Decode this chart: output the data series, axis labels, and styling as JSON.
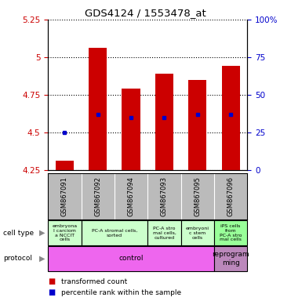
{
  "title": "GDS4124 / 1553478_at",
  "samples": [
    "GSM867091",
    "GSM867092",
    "GSM867094",
    "GSM867093",
    "GSM867095",
    "GSM867096"
  ],
  "transformed_counts": [
    4.31,
    5.06,
    4.79,
    4.89,
    4.85,
    4.94
  ],
  "percentile_ranks": [
    25,
    37,
    35,
    35,
    37,
    37
  ],
  "ylim_left": [
    4.25,
    5.25
  ],
  "ylim_right": [
    0,
    100
  ],
  "yticks_left": [
    4.25,
    4.5,
    4.75,
    5.0,
    5.25
  ],
  "yticks_right": [
    0,
    25,
    50,
    75,
    100
  ],
  "ytick_labels_left": [
    "4.25",
    "4.5",
    "4.75",
    "5",
    "5.25"
  ],
  "ytick_labels_right": [
    "0",
    "25",
    "50",
    "75",
    "100%"
  ],
  "bar_color": "#cc0000",
  "dot_color": "#0000cc",
  "bar_bottom": 4.25,
  "bar_width": 0.55,
  "cell_types": [
    {
      "label": "embryona\nl carciom\na NCCIT\ncells",
      "span": [
        0,
        1
      ],
      "color": "#ccffcc"
    },
    {
      "label": "PC-A stromal cells,\nsorted",
      "span": [
        1,
        3
      ],
      "color": "#ccffcc"
    },
    {
      "label": "PC-A stro\nmal cells,\ncultured",
      "span": [
        3,
        4
      ],
      "color": "#ccffcc"
    },
    {
      "label": "embryoni\nc stem\ncells",
      "span": [
        4,
        5
      ],
      "color": "#ccffcc"
    },
    {
      "label": "iPS cells\nfrom\nPC-A stro\nmal cells",
      "span": [
        5,
        6
      ],
      "color": "#99ff99"
    }
  ],
  "protocols": [
    {
      "label": "control",
      "span": [
        0,
        5
      ],
      "color": "#ee66ee"
    },
    {
      "label": "reprogram\nming",
      "span": [
        5,
        6
      ],
      "color": "#bb88bb"
    }
  ],
  "background_color": "#ffffff",
  "plot_bg_color": "#ffffff",
  "tick_label_color_left": "#cc0000",
  "tick_label_color_right": "#0000cc",
  "grid_color": "#000000",
  "sample_bg_color": "#bbbbbb",
  "legend_items": [
    {
      "label": "transformed count",
      "color": "#cc0000"
    },
    {
      "label": "percentile rank within the sample",
      "color": "#0000cc"
    }
  ]
}
